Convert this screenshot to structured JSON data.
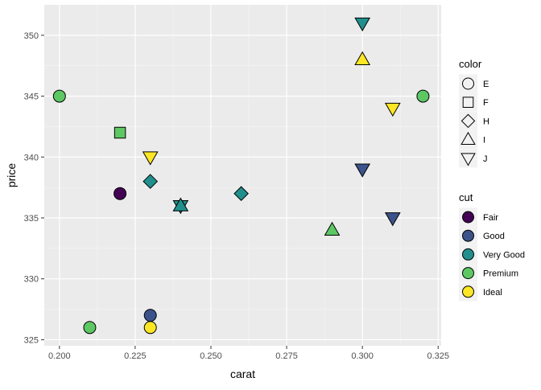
{
  "chart_data": {
    "type": "scatter",
    "xlabel": "carat",
    "ylabel": "price",
    "xlim": [
      0.195,
      0.326
    ],
    "ylim": [
      324.5,
      352.5
    ],
    "x_ticks": [
      0.2,
      0.225,
      0.25,
      0.275,
      0.3,
      0.325
    ],
    "x_tick_labels": [
      "0.200",
      "0.225",
      "0.250",
      "0.275",
      "0.300",
      "0.325"
    ],
    "y_ticks": [
      325,
      330,
      335,
      340,
      345,
      350
    ],
    "y_tick_labels": [
      "325",
      "330",
      "335",
      "340",
      "345",
      "350"
    ],
    "grid": true,
    "legend_placement": "right",
    "legends": [
      {
        "title": "color",
        "entries": [
          {
            "label": "E",
            "shape": "circle"
          },
          {
            "label": "F",
            "shape": "square"
          },
          {
            "label": "H",
            "shape": "diamond"
          },
          {
            "label": "I",
            "shape": "triangle-up"
          },
          {
            "label": "J",
            "shape": "triangle-down"
          }
        ]
      },
      {
        "title": "cut",
        "entries": [
          {
            "label": "Fair",
            "fill": "#440154"
          },
          {
            "label": "Good",
            "fill": "#3B528B"
          },
          {
            "label": "Very Good",
            "fill": "#21908C"
          },
          {
            "label": "Premium",
            "fill": "#5DC863"
          },
          {
            "label": "Ideal",
            "fill": "#FDE725"
          }
        ]
      }
    ],
    "points": [
      {
        "x": 0.23,
        "y": 326,
        "color": "E",
        "cut": "Ideal"
      },
      {
        "x": 0.21,
        "y": 326,
        "color": "E",
        "cut": "Premium"
      },
      {
        "x": 0.23,
        "y": 327,
        "color": "E",
        "cut": "Good"
      },
      {
        "x": 0.29,
        "y": 334,
        "color": "I",
        "cut": "Premium"
      },
      {
        "x": 0.31,
        "y": 335,
        "color": "J",
        "cut": "Good"
      },
      {
        "x": 0.24,
        "y": 336,
        "color": "J",
        "cut": "Very Good"
      },
      {
        "x": 0.24,
        "y": 336,
        "color": "I",
        "cut": "Very Good"
      },
      {
        "x": 0.26,
        "y": 337,
        "color": "H",
        "cut": "Very Good"
      },
      {
        "x": 0.22,
        "y": 337,
        "color": "E",
        "cut": "Fair"
      },
      {
        "x": 0.23,
        "y": 338,
        "color": "H",
        "cut": "Very Good"
      },
      {
        "x": 0.3,
        "y": 339,
        "color": "J",
        "cut": "Good"
      },
      {
        "x": 0.23,
        "y": 340,
        "color": "J",
        "cut": "Ideal"
      },
      {
        "x": 0.22,
        "y": 342,
        "color": "F",
        "cut": "Premium"
      },
      {
        "x": 0.31,
        "y": 344,
        "color": "J",
        "cut": "Ideal"
      },
      {
        "x": 0.2,
        "y": 345,
        "color": "E",
        "cut": "Premium"
      },
      {
        "x": 0.32,
        "y": 345,
        "color": "E",
        "cut": "Premium"
      },
      {
        "x": 0.3,
        "y": 348,
        "color": "I",
        "cut": "Ideal"
      },
      {
        "x": 0.3,
        "y": 351,
        "color": "J",
        "cut": "Very Good"
      }
    ]
  }
}
